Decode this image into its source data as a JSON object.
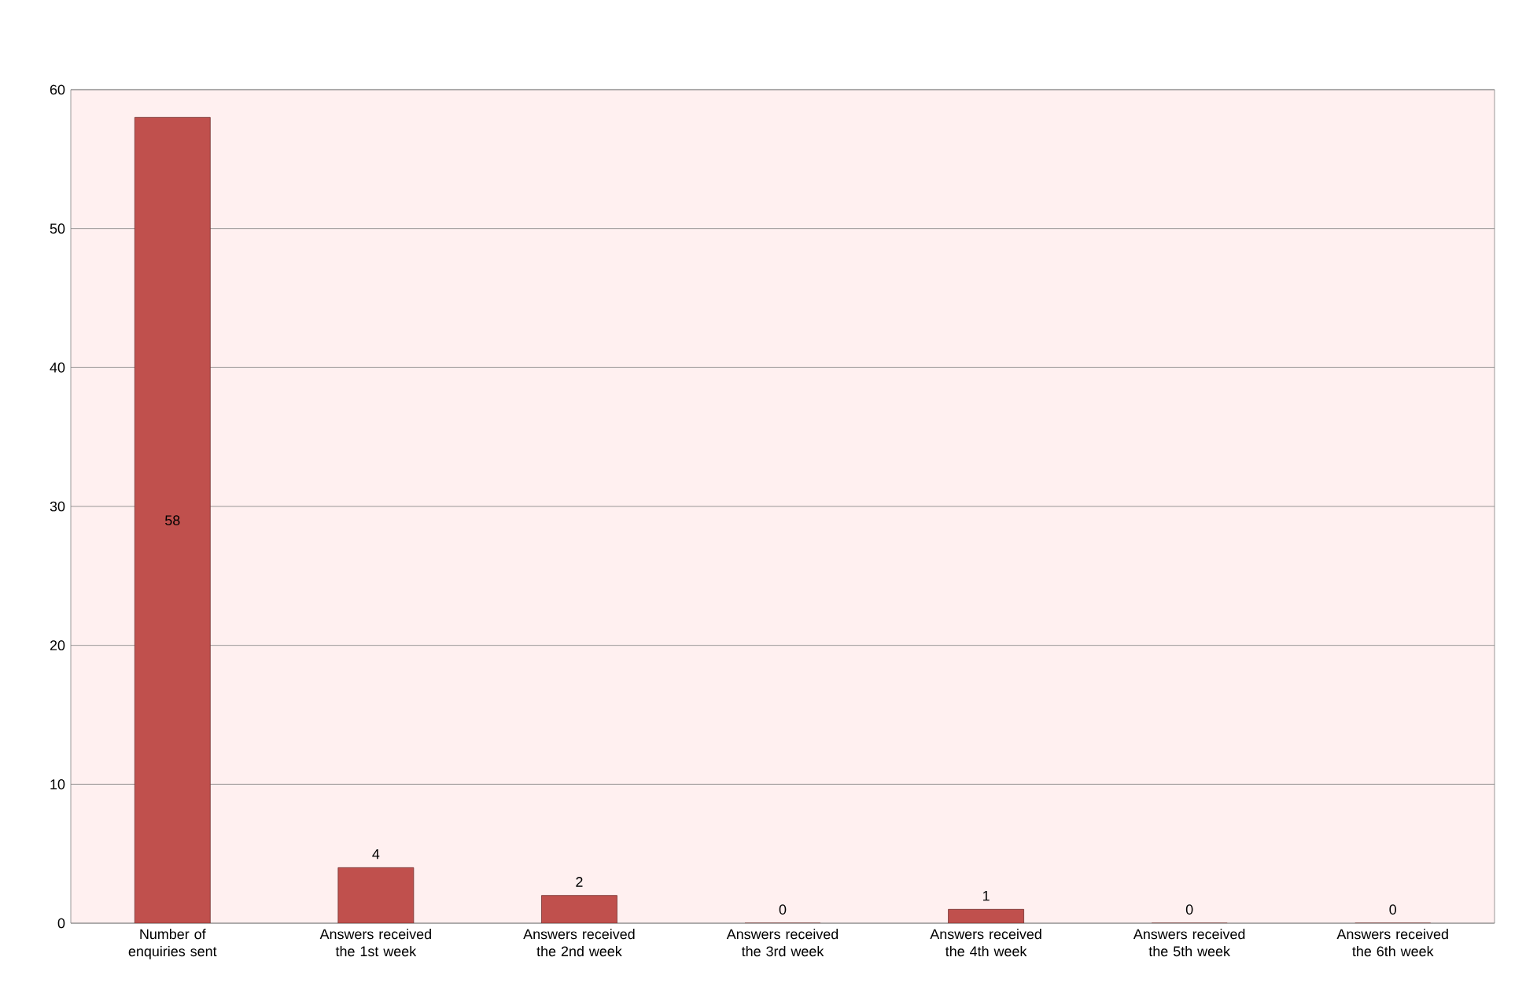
{
  "chart_data": {
    "type": "bar",
    "categories": [
      "Number of enquiries sent",
      "Answers received the 1st week",
      "Answers received the 2nd week",
      "Answers received the 3rd week",
      "Answers received the 4th week",
      "Answers received the 5th week",
      "Answers received the 6th week"
    ],
    "values": [
      58,
      4,
      2,
      0,
      1,
      0,
      0
    ],
    "color": "#c0504d",
    "ylim": [
      0,
      60
    ],
    "yticks": [
      0,
      10,
      20,
      30,
      40,
      50,
      60
    ],
    "grid": "y",
    "data_labels": true
  }
}
